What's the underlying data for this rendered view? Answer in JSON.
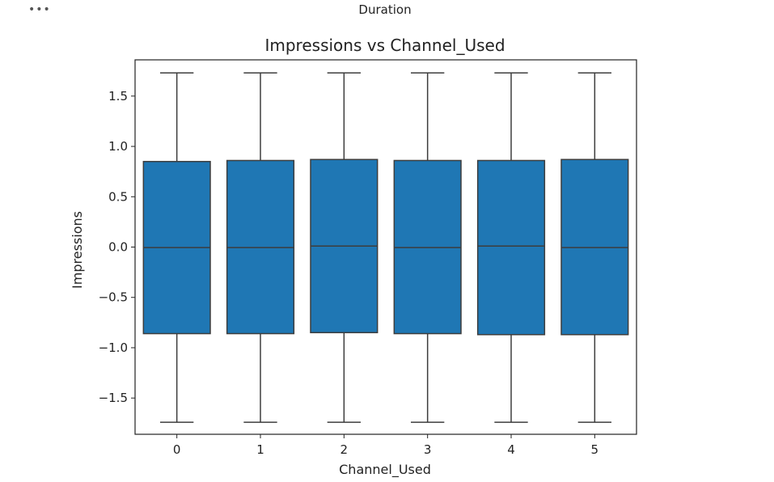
{
  "header": {
    "more_icon": "more-horizontal-icon",
    "more_label": "•••",
    "output_label": "Duration"
  },
  "colors": {
    "box_fill": "#1f77b4",
    "line": "#3d3d3d",
    "axis": "#222222"
  },
  "chart_data": {
    "type": "box",
    "title": "Impressions vs Channel_Used",
    "xlabel": "Channel_Used",
    "ylabel": "Impressions",
    "ylim": [
      -1.86,
      1.86
    ],
    "yticks": [
      -1.5,
      -1.0,
      -0.5,
      0.0,
      0.5,
      1.0,
      1.5
    ],
    "ytick_labels": [
      "−1.5",
      "−1.0",
      "−0.5",
      "0.0",
      "0.5",
      "1.0",
      "1.5"
    ],
    "categories": [
      "0",
      "1",
      "2",
      "3",
      "4",
      "5"
    ],
    "boxes": [
      {
        "category": "0",
        "whisker_low": -1.74,
        "q1": -0.86,
        "median": -0.005,
        "q3": 0.85,
        "whisker_high": 1.73
      },
      {
        "category": "1",
        "whisker_low": -1.74,
        "q1": -0.86,
        "median": -0.005,
        "q3": 0.86,
        "whisker_high": 1.73
      },
      {
        "category": "2",
        "whisker_low": -1.74,
        "q1": -0.85,
        "median": 0.01,
        "q3": 0.87,
        "whisker_high": 1.73
      },
      {
        "category": "3",
        "whisker_low": -1.74,
        "q1": -0.86,
        "median": -0.005,
        "q3": 0.86,
        "whisker_high": 1.73
      },
      {
        "category": "4",
        "whisker_low": -1.74,
        "q1": -0.87,
        "median": 0.01,
        "q3": 0.86,
        "whisker_high": 1.73
      },
      {
        "category": "5",
        "whisker_low": -1.74,
        "q1": -0.87,
        "median": -0.005,
        "q3": 0.87,
        "whisker_high": 1.73
      }
    ],
    "grid": false,
    "legend": "none"
  }
}
